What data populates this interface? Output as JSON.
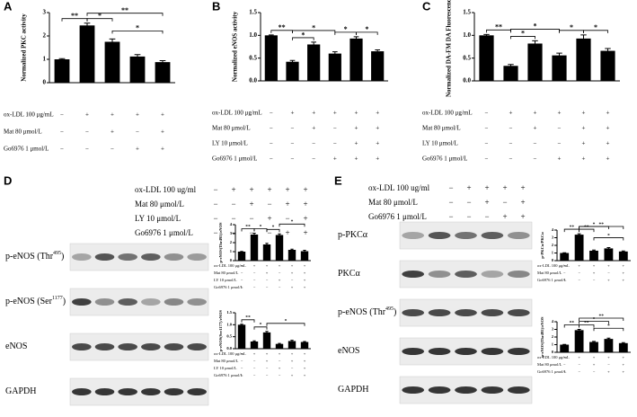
{
  "chart_data": [
    {
      "type": "bar",
      "panel": "A",
      "ylabel": "Normalized PKC activity",
      "categories": [
        null,
        null,
        null,
        null,
        null
      ],
      "values": [
        1.0,
        2.45,
        1.75,
        1.12,
        0.88
      ],
      "errors": [
        0.03,
        0.1,
        0.12,
        0.08,
        0.06
      ],
      "color": "#000000",
      "ylim": [
        0,
        3
      ],
      "yticks": [
        0,
        1,
        2,
        3
      ],
      "brackets": [
        {
          "text": "**",
          "from": 0,
          "to": 1
        },
        {
          "text": "*",
          "from": 1,
          "to": 2
        },
        {
          "text": "*",
          "from": 2,
          "to": 4
        },
        {
          "text": "**",
          "from": 1,
          "to": 4
        }
      ],
      "conditions": [
        {
          "label": "ox-LDL 100 μg/mL",
          "signs": [
            "−",
            "+",
            "+",
            "+",
            "+"
          ]
        },
        {
          "label": "Mat 80 μmol/L",
          "signs": [
            "−",
            "−",
            "+",
            "−",
            "+"
          ]
        },
        {
          "label": "Go6976 1 μmol/L",
          "signs": [
            "−",
            "−",
            "−",
            "+",
            "+"
          ]
        }
      ]
    },
    {
      "type": "bar",
      "panel": "B",
      "ylabel": "Normalized eNOS activity",
      "categories": [
        null,
        null,
        null,
        null,
        null,
        null
      ],
      "values": [
        1.0,
        0.42,
        0.8,
        0.6,
        0.93,
        0.65
      ],
      "errors": [
        0.01,
        0.03,
        0.05,
        0.04,
        0.04,
        0.03
      ],
      "color": "#000000",
      "ylim": [
        0,
        1.5
      ],
      "yticks": [
        {
          "value": 0,
          "label": "0.0"
        },
        0.5,
        {
          "value": 1,
          "label": "1.0"
        },
        1.5
      ],
      "brackets": [
        {
          "text": "**",
          "from": 0,
          "to": 1
        },
        {
          "text": "*",
          "from": 1,
          "to": 2
        },
        {
          "text": "*",
          "from": 3,
          "to": 4
        },
        {
          "text": "*",
          "from": 4,
          "to": 5
        },
        {
          "text": "*",
          "from": 1,
          "to": 3
        }
      ],
      "conditions": [
        {
          "label": "ox-LDL 100 μg/mL",
          "signs": [
            "−",
            "+",
            "+",
            "+",
            "+",
            "+"
          ]
        },
        {
          "label": "Mat 80 μmol/L",
          "signs": [
            "−",
            "−",
            "+",
            "−",
            "+",
            "+"
          ]
        },
        {
          "label": "LY 10 μmol/L",
          "signs": [
            "−",
            "−",
            "−",
            "−",
            "+",
            "+"
          ]
        },
        {
          "label": "Go6976 1 μmol/L",
          "signs": [
            "−",
            "−",
            "−",
            "+",
            "+",
            "+"
          ]
        }
      ]
    },
    {
      "type": "bar",
      "panel": "C",
      "ylabel": "Normalized DA-FM DA Fluorescence",
      "categories": [
        null,
        null,
        null,
        null,
        null,
        null
      ],
      "values": [
        1.0,
        0.33,
        0.82,
        0.56,
        0.93,
        0.66
      ],
      "errors": [
        0.02,
        0.03,
        0.06,
        0.05,
        0.08,
        0.05
      ],
      "color": "#000000",
      "ylim": [
        0,
        1.5
      ],
      "yticks": [
        {
          "value": 0,
          "label": "0.0"
        },
        0.5,
        {
          "value": 1,
          "label": "1.0"
        },
        1.5
      ],
      "brackets": [
        {
          "text": "**",
          "from": 0,
          "to": 1
        },
        {
          "text": "*",
          "from": 1,
          "to": 2
        },
        {
          "text": "*",
          "from": 3,
          "to": 4
        },
        {
          "text": "*",
          "from": 4,
          "to": 5
        },
        {
          "text": "*",
          "from": 1,
          "to": 3
        }
      ],
      "conditions": [
        {
          "label": "ox-LDL 100 μg/mL",
          "signs": [
            "−",
            "+",
            "+",
            "+",
            "+",
            "+"
          ]
        },
        {
          "label": "Mat 80 μmol/L",
          "signs": [
            "−",
            "−",
            "+",
            "−",
            "+",
            "+"
          ]
        },
        {
          "label": "LY 10 μmol/L",
          "signs": [
            "−",
            "−",
            "−",
            "−",
            "+",
            "+"
          ]
        },
        {
          "label": "Go6976 1 μmol/L",
          "signs": [
            "−",
            "−",
            "−",
            "+",
            "+",
            "+"
          ]
        }
      ]
    },
    {
      "type": "bar",
      "ylabel": "p-eNOS(Thr495)/eNOS",
      "categories": [
        null,
        null,
        null,
        null,
        null,
        null
      ],
      "values": [
        1.0,
        2.9,
        1.8,
        2.85,
        1.2,
        1.05
      ],
      "errors": [
        0.02,
        0.15,
        0.12,
        0.12,
        0.08,
        0.1
      ],
      "color": "#000000",
      "ylim": [
        0,
        4
      ],
      "yticks": [
        0,
        1,
        2,
        3,
        4
      ],
      "brackets": [
        {
          "text": "**",
          "from": 0,
          "to": 1
        },
        {
          "text": "*",
          "from": 1,
          "to": 2
        },
        {
          "text": "*",
          "from": 2,
          "to": 3
        },
        {
          "text": "*",
          "from": 3,
          "to": 5
        }
      ],
      "conditions": [
        {
          "label": "ox-LDL 100 μg/mL",
          "signs": [
            "−",
            "+",
            "+",
            "+",
            "+",
            "+"
          ]
        },
        {
          "label": "Mat 80 μmol/L",
          "signs": [
            "−",
            "−",
            "+",
            "−",
            "+",
            "+"
          ]
        },
        {
          "label": "LY 10 μmol/L",
          "signs": [
            "−",
            "−",
            "−",
            "+",
            "−",
            "+"
          ]
        },
        {
          "label": "Go6976 1 μmol/L",
          "signs": [
            "−",
            "−",
            "−",
            "−",
            "+",
            "+"
          ]
        }
      ]
    },
    {
      "type": "bar",
      "ylabel": "p-eNOS(Ser1177)/eNOS",
      "categories": [
        null,
        null,
        null,
        null,
        null,
        null
      ],
      "values": [
        1.0,
        0.3,
        0.68,
        0.2,
        0.32,
        0.28
      ],
      "errors": [
        0.02,
        0.03,
        0.04,
        0.02,
        0.03,
        0.02
      ],
      "color": "#000000",
      "ylim": [
        0,
        1.5
      ],
      "yticks": [
        {
          "value": 0,
          "label": "0.0"
        },
        0.5,
        {
          "value": 1,
          "label": "1.0"
        },
        1.5
      ],
      "brackets": [
        {
          "text": "**",
          "from": 0,
          "to": 1
        },
        {
          "text": "*",
          "from": 1,
          "to": 2
        },
        {
          "text": "*",
          "from": 2,
          "to": 5
        }
      ],
      "conditions": [
        {
          "label": "ox-LDL 100 μg/mL",
          "signs": [
            "−",
            "+",
            "+",
            "+",
            "+",
            "+"
          ]
        },
        {
          "label": "Mat 80 μmol/L",
          "signs": [
            "−",
            "−",
            "+",
            "−",
            "+",
            "+"
          ]
        },
        {
          "label": "LY 10 μmol/L",
          "signs": [
            "−",
            "−",
            "−",
            "+",
            "−",
            "+"
          ]
        },
        {
          "label": "Go6976 1 μmol/L",
          "signs": [
            "−",
            "−",
            "−",
            "−",
            "+",
            "+"
          ]
        }
      ]
    },
    {
      "type": "bar",
      "ylabel": "p-PKCα/PKCα",
      "categories": [
        null,
        null,
        null,
        null,
        null
      ],
      "values": [
        1.0,
        3.4,
        1.3,
        1.6,
        1.2
      ],
      "errors": [
        0.03,
        0.12,
        0.08,
        0.1,
        0.07
      ],
      "color": "#000000",
      "ylim": [
        0,
        4
      ],
      "yticks": [
        0,
        1,
        2,
        3,
        4
      ],
      "brackets": [
        {
          "text": "**",
          "from": 0,
          "to": 1
        },
        {
          "text": "**",
          "from": 1,
          "to": 2
        },
        {
          "text": "*",
          "from": 1,
          "to": 3
        },
        {
          "text": "*",
          "from": 2,
          "to": 4
        },
        {
          "text": "**",
          "from": 1,
          "to": 4
        }
      ],
      "conditions": [
        {
          "label": "ox-LDL 100 μg/mL",
          "signs": [
            "−",
            "+",
            "+",
            "+",
            "+"
          ]
        },
        {
          "label": "Mat 80 μmol/L",
          "signs": [
            "−",
            "−",
            "+",
            "−",
            "+"
          ]
        },
        {
          "label": "Go6976 1 μmol/L",
          "signs": [
            "−",
            "−",
            "−",
            "+",
            "+"
          ]
        }
      ]
    },
    {
      "type": "bar",
      "ylabel": "p-eNOS(Thr495)/eNOS",
      "categories": [
        null,
        null,
        null,
        null,
        null
      ],
      "values": [
        1.0,
        2.9,
        1.35,
        1.75,
        1.2
      ],
      "errors": [
        0.03,
        0.1,
        0.08,
        0.1,
        0.07
      ],
      "color": "#000000",
      "ylim": [
        0,
        4
      ],
      "yticks": [
        0,
        1,
        2,
        3,
        4
      ],
      "brackets": [
        {
          "text": "**",
          "from": 0,
          "to": 1
        },
        {
          "text": "**",
          "from": 1,
          "to": 2
        },
        {
          "text": "*",
          "from": 1,
          "to": 3
        },
        {
          "text": "*",
          "from": 2,
          "to": 4
        },
        {
          "text": "**",
          "from": 1,
          "to": 4
        }
      ],
      "conditions": [
        {
          "label": "ox-LDL 100 μg/mL",
          "signs": [
            "−",
            "+",
            "+",
            "+",
            "+"
          ]
        },
        {
          "label": "Mat 80 μmol/L",
          "signs": [
            "−",
            "−",
            "+",
            "−",
            "+"
          ]
        },
        {
          "label": "Go6976 1 μmol/L",
          "signs": [
            "−",
            "−",
            "−",
            "+",
            "+"
          ]
        }
      ]
    }
  ],
  "blots": [
    {
      "panel": "D",
      "conditions": [
        {
          "label": "ox-LDL 100 ug/ml",
          "signs": [
            "−",
            "+",
            "+",
            "+",
            "+",
            "+"
          ]
        },
        {
          "label": "Mat 80 μmol/L",
          "signs": [
            "−",
            "−",
            "+",
            "−",
            "+",
            "+"
          ]
        },
        {
          "label": "LY 10 μmol/L",
          "signs": [
            "−",
            "−",
            "−",
            "+",
            "−",
            "+"
          ]
        },
        {
          "label": "Go6976 1 μmol/L",
          "signs": [
            "−",
            "−",
            "−",
            "−",
            "+",
            "+"
          ]
        }
      ],
      "bands": [
        {
          "parts": [
            "p-eNOS (Thr",
            "495",
            ")"
          ]
        },
        {
          "parts": [
            "p-eNOS (Ser",
            "1177",
            ")"
          ]
        },
        {
          "parts": [
            "eNOS"
          ]
        },
        {
          "parts": [
            "GAPDH"
          ]
        }
      ]
    },
    {
      "panel": "E",
      "conditions": [
        {
          "label": "ox-LDL 100 ug/ml",
          "signs": [
            "−",
            "+",
            "+",
            "+",
            "+"
          ]
        },
        {
          "label": "Mat 80 μmol/L",
          "signs": [
            "−",
            "−",
            "+",
            "−",
            "+"
          ]
        },
        {
          "label": "Go6976 1 μmol/L",
          "signs": [
            "−",
            "−",
            "−",
            "+",
            "+"
          ]
        }
      ],
      "bands": [
        {
          "parts": [
            "p-PKCα"
          ]
        },
        {
          "parts": [
            "PKCα"
          ]
        },
        {
          "parts": [
            "p-eNOS (Thr",
            "495",
            ")"
          ]
        },
        {
          "parts": [
            "eNOS"
          ]
        },
        {
          "parts": [
            "GAPDH"
          ]
        }
      ]
    }
  ]
}
